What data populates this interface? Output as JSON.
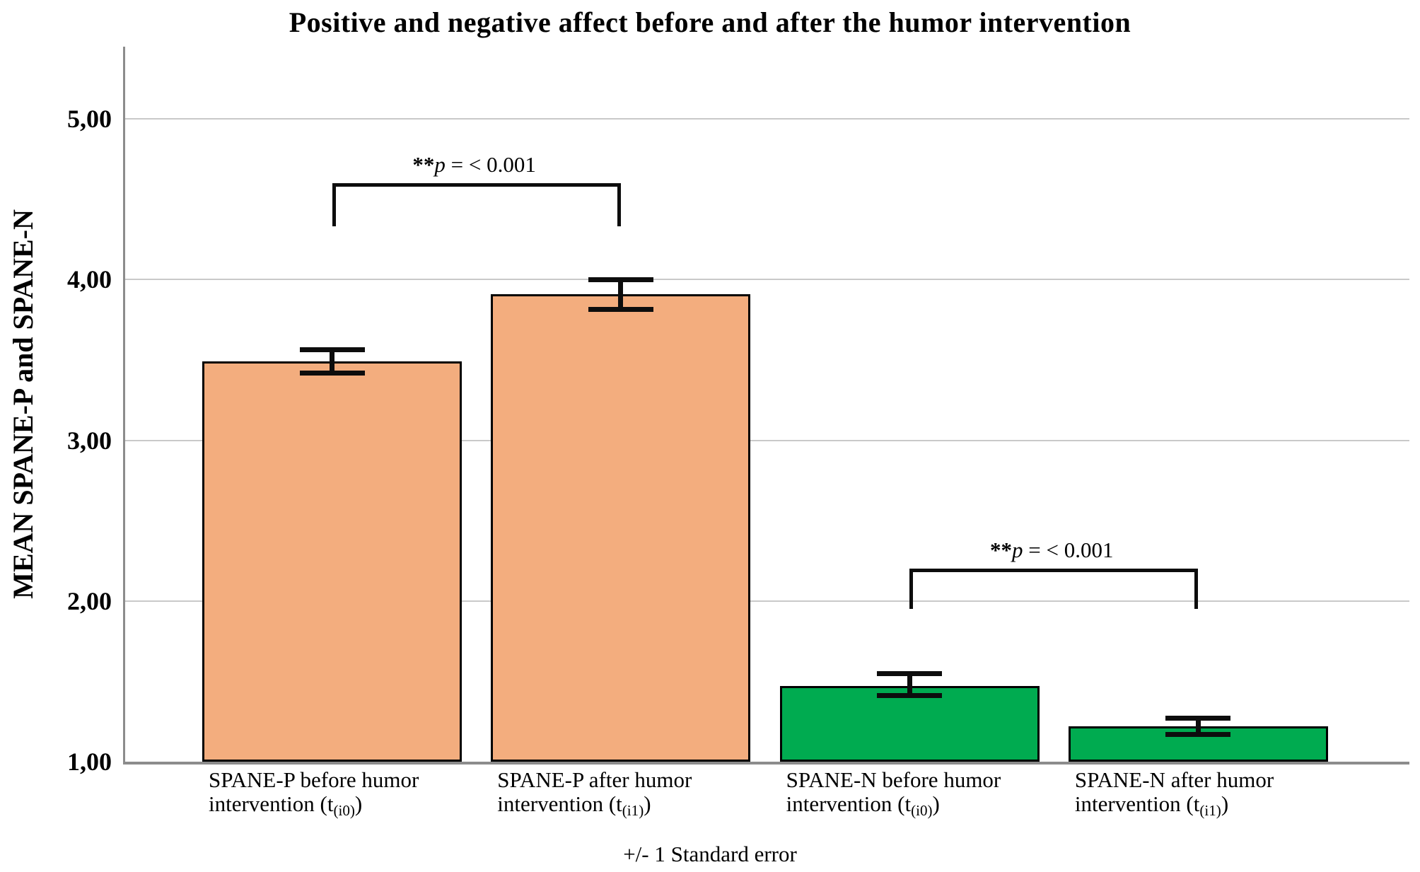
{
  "chart_data": {
    "type": "bar",
    "title": "Positive and negative affect before and after the humor intervention",
    "ylabel": "MEAN SPANE-P and SPANE-N",
    "xlabel": "",
    "caption": "+/- 1 Standard error",
    "decimal_style": "comma",
    "grid": true,
    "legend": "none",
    "ylim": [
      1,
      5.45
    ],
    "yticks": [
      {
        "value": 1,
        "label": "1,00"
      },
      {
        "value": 2,
        "label": "2,00"
      },
      {
        "value": 3,
        "label": "3,00"
      },
      {
        "value": 4,
        "label": "4,00"
      },
      {
        "value": 5,
        "label": "5,00"
      }
    ],
    "bars": [
      {
        "label": "SPANE-P before humor intervention (t(i0))",
        "label_line1": "SPANE-P before humor",
        "label_line2_pre": "intervention (t",
        "label_line2_sub": "(i0)",
        "label_line2_post": ")",
        "group": "SPANE-P",
        "value": 3.49,
        "se_upper": 3.565,
        "se_lower": 3.42,
        "color": "#F3AD7E"
      },
      {
        "label": "SPANE-P after humor intervention (t(i1))",
        "label_line1": "SPANE-P after humor",
        "label_line2_pre": "intervention (t",
        "label_line2_sub": "(i1)",
        "label_line2_post": ")",
        "group": "SPANE-P",
        "value": 3.91,
        "se_upper": 4.0,
        "se_lower": 3.815,
        "color": "#F3AD7E"
      },
      {
        "label": "SPANE-N before humor intervention (t(i0))",
        "label_line1": "SPANE-N before humor",
        "label_line2_pre": "intervention (t",
        "label_line2_sub": "(i0)",
        "label_line2_post": ")",
        "group": "SPANE-N",
        "value": 1.47,
        "se_upper": 1.55,
        "se_lower": 1.41,
        "color": "#00AB50"
      },
      {
        "label": "SPANE-N after humor intervention (t(i1))",
        "label_line1": "SPANE-N after humor",
        "label_line2_pre": "intervention (t",
        "label_line2_sub": "(i1)",
        "label_line2_post": ")",
        "group": "SPANE-N",
        "value": 1.22,
        "se_upper": 1.27,
        "se_lower": 1.17,
        "color": "#00AB50"
      }
    ],
    "significance": [
      {
        "pair": [
          0,
          1
        ],
        "stars": "**",
        "p": "p",
        "rest": " = < 0.001",
        "bracket_top": 4.6,
        "leg_bottom": 4.33
      },
      {
        "pair": [
          2,
          3
        ],
        "stars": "**",
        "p": "p",
        "rest": " = < 0.001",
        "bracket_top": 2.2,
        "leg_bottom": 1.95
      }
    ],
    "colors": {
      "positive_fill": "#F3AD7E",
      "negative_fill": "#00AB50",
      "bar_border": "#000000",
      "error_bar": "#0d0d0d",
      "gridline": "#C9C9C9",
      "axis": "#8C8C8C"
    }
  }
}
